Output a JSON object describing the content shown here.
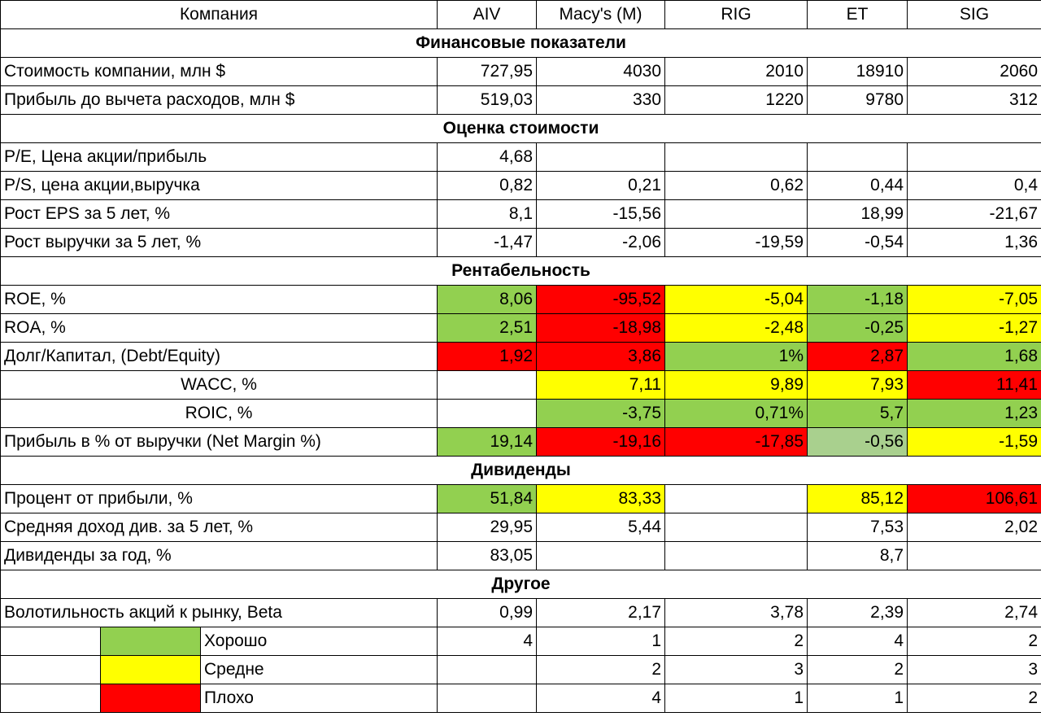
{
  "colors": {
    "good": "#92d050",
    "good_light": "#a9d08e",
    "medium": "#ffff00",
    "bad": "#ff0000"
  },
  "header": {
    "label": "Компания",
    "companies": [
      "AIV",
      "Macy's (M)",
      "RIG",
      "ET",
      "SIG"
    ]
  },
  "sections": {
    "finance": "Финансовые показатели",
    "valuation": "Оценка стоимости",
    "profitability": "Рентабельность",
    "dividends": "Дивиденды",
    "other": "Другое"
  },
  "rows": [
    {
      "label": "Стоимость компании, млн $",
      "values": [
        "727,95",
        "4030",
        "2010",
        "18910",
        "2060"
      ]
    },
    {
      "label": "Прибыль до вычета расходов, млн $",
      "values": [
        "519,03",
        "330",
        "1220",
        "9780",
        "312"
      ]
    },
    {
      "label": "P/E, Цена акции/прибыль",
      "values": [
        "4,68",
        "",
        "",
        "",
        ""
      ]
    },
    {
      "label": "P/S, цена акции,выручка",
      "values": [
        "0,82",
        "0,21",
        "0,62",
        "0,44",
        "0,4"
      ]
    },
    {
      "label": "Рост EPS за 5 лет, %",
      "values": [
        "8,1",
        "-15,56",
        "",
        "18,99",
        "-21,67"
      ]
    },
    {
      "label": "Рост выручки за 5 лет, %",
      "values": [
        "-1,47",
        "-2,06",
        "-19,59",
        "-0,54",
        "1,36"
      ]
    },
    {
      "label": "ROE, %",
      "values": [
        "8,06",
        "-95,52",
        "-5,04",
        "-1,18",
        "-7,05"
      ]
    },
    {
      "label": "ROA, %",
      "values": [
        "2,51",
        "-18,98",
        "-2,48",
        "-0,25",
        "-1,27"
      ]
    },
    {
      "label": "Долг/Капитал, (Debt/Equity)",
      "values": [
        "1,92",
        "3,86",
        "1%",
        "2,87",
        "1,68"
      ]
    },
    {
      "label": "WACC, %",
      "values": [
        "",
        "7,11",
        "9,89",
        "7,93",
        "11,41"
      ]
    },
    {
      "label": "ROIC, %",
      "values": [
        "",
        "-3,75",
        "0,71%",
        "5,7",
        "1,23"
      ]
    },
    {
      "label": "Прибыль в % от выручки (Net Margin %)",
      "values": [
        "19,14",
        "-19,16",
        "-17,85",
        "-0,56",
        "-1,59"
      ]
    },
    {
      "label": "Процент от прибыли, %",
      "values": [
        "51,84",
        "83,33",
        "",
        "85,12",
        "106,61"
      ]
    },
    {
      "label": "Средняя доход див. за 5 лет, %",
      "values": [
        "29,95",
        "5,44",
        "",
        "7,53",
        "2,02"
      ]
    },
    {
      "label": "Дивиденды за год, %",
      "values": [
        "83,05",
        "",
        "",
        "8,7",
        ""
      ]
    },
    {
      "label": "Волотильность акций к рынку, Beta",
      "values": [
        "0,99",
        "2,17",
        "3,78",
        "2,39",
        "2,74"
      ]
    }
  ],
  "legend": [
    {
      "label": "Хорошо",
      "values": [
        "4",
        "1",
        "2",
        "4",
        "2"
      ]
    },
    {
      "label": "Средне",
      "values": [
        "",
        "2",
        "3",
        "2",
        "3"
      ]
    },
    {
      "label": "Плохо",
      "values": [
        "",
        "4",
        "1",
        "1",
        "2"
      ]
    }
  ]
}
